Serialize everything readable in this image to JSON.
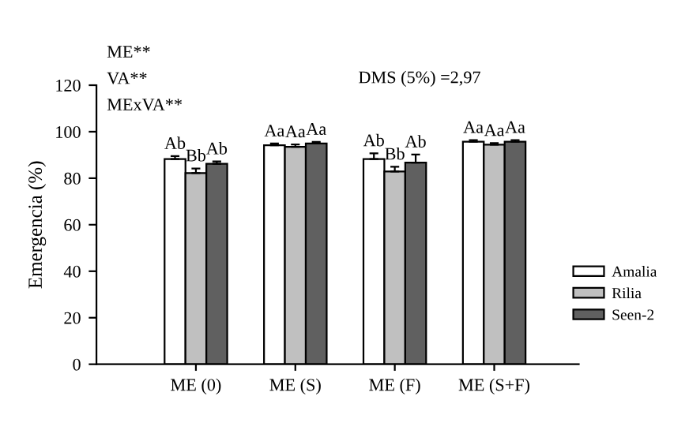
{
  "chart_data": {
    "type": "bar",
    "ylabel": "Emergencia (%)",
    "categories": [
      "ME (0)",
      "ME (S)",
      "ME (F)",
      "ME (S+F)"
    ],
    "series": [
      {
        "name": "Amalia",
        "color": "#ffffff",
        "values": [
          88.2,
          94.2,
          88.2,
          95.7
        ],
        "errors": [
          1.3,
          0.7,
          2.5,
          0.7
        ],
        "value_labels": [
          "Ab",
          "Aa",
          "Ab",
          "Aa"
        ]
      },
      {
        "name": "Rilia",
        "color": "#c0c0c0",
        "values": [
          82.2,
          93.5,
          82.9,
          94.4
        ],
        "errors": [
          2,
          1,
          2,
          0.7
        ],
        "value_labels": [
          "Bb",
          "Aa",
          "Bb",
          "Aa"
        ]
      },
      {
        "name": "Seen-2",
        "color": "#606060",
        "values": [
          86.2,
          94.9,
          86.7,
          95.7
        ],
        "errors": [
          1,
          0.7,
          3.5,
          0.7
        ],
        "value_labels": [
          "Ab",
          "Aa",
          "Ab",
          "Aa"
        ]
      }
    ],
    "ylim": [
      0,
      120
    ],
    "yticks": [
      0,
      20,
      40,
      60,
      80,
      100,
      120
    ],
    "grid": false,
    "legend": "right",
    "annotations": [
      "ME**",
      "VA**",
      "MExVA**",
      "DMS (5%) =2,97"
    ]
  }
}
